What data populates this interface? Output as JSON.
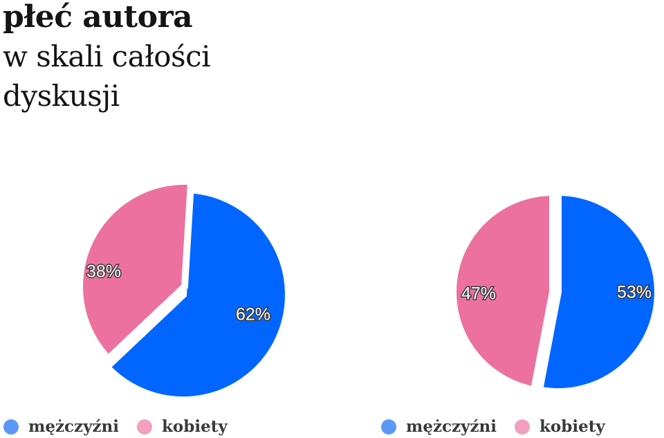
{
  "title": {
    "line1": "płeć autora",
    "line2": "w skali całości",
    "line3": "dyskusji"
  },
  "colors": {
    "men": "#0066FF",
    "women": "#EC719E",
    "legend_men": "#5B97F5",
    "legend_women": "#F2A0BD"
  },
  "chart_data": [
    {
      "type": "pie",
      "slices": [
        {
          "label": "mężczyźni",
          "value": 62,
          "display": "62%"
        },
        {
          "label": "kobiety",
          "value": 38,
          "display": "38%"
        }
      ],
      "legend": [
        "mężczyźni",
        "kobiety"
      ],
      "legend_position": "bottom"
    },
    {
      "type": "pie",
      "slices": [
        {
          "label": "mężczyźni",
          "value": 53,
          "display": "53%"
        },
        {
          "label": "kobiety",
          "value": 47,
          "display": "47%"
        }
      ],
      "legend": [
        "mężczyźni",
        "kobiety"
      ],
      "legend_position": "bottom"
    }
  ]
}
